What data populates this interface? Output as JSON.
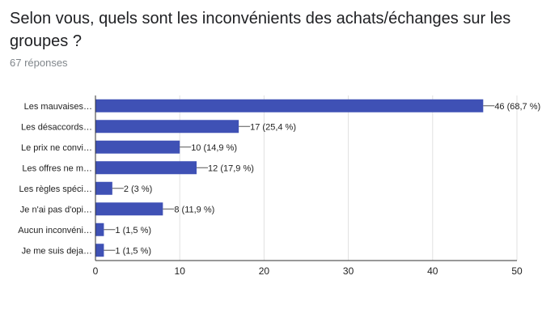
{
  "question": {
    "title": "Selon vous, quels sont les inconvénients des achats/échanges sur les groupes ?",
    "response_count": "67 réponses"
  },
  "colors": {
    "bar": "#3f51b5",
    "axis": "#333333",
    "grid": "#e0e0e0",
    "label_text": "#222222"
  },
  "chart_data": {
    "type": "bar",
    "orientation": "horizontal",
    "categories": [
      "Les mauvaises…",
      "Les désaccords…",
      "Le prix ne convi…",
      "Les offres ne m…",
      "Les règles spéci…",
      "Je n'ai pas d'opi…",
      "Aucun inconvéni…",
      "Je me suis deja…"
    ],
    "values": [
      46,
      17,
      10,
      12,
      2,
      8,
      1,
      1
    ],
    "data_labels": [
      "46 (68,7 %)",
      "17 (25,4 %)",
      "10 (14,9 %)",
      "12 (17,9 %)",
      "2 (3 %)",
      "8 (11,9 %)",
      "1 (1,5 %)",
      "1 (1,5 %)"
    ],
    "xlim": [
      0,
      50
    ],
    "xticks": [
      "0",
      "10",
      "20",
      "30",
      "40",
      "50"
    ],
    "grid": true
  }
}
